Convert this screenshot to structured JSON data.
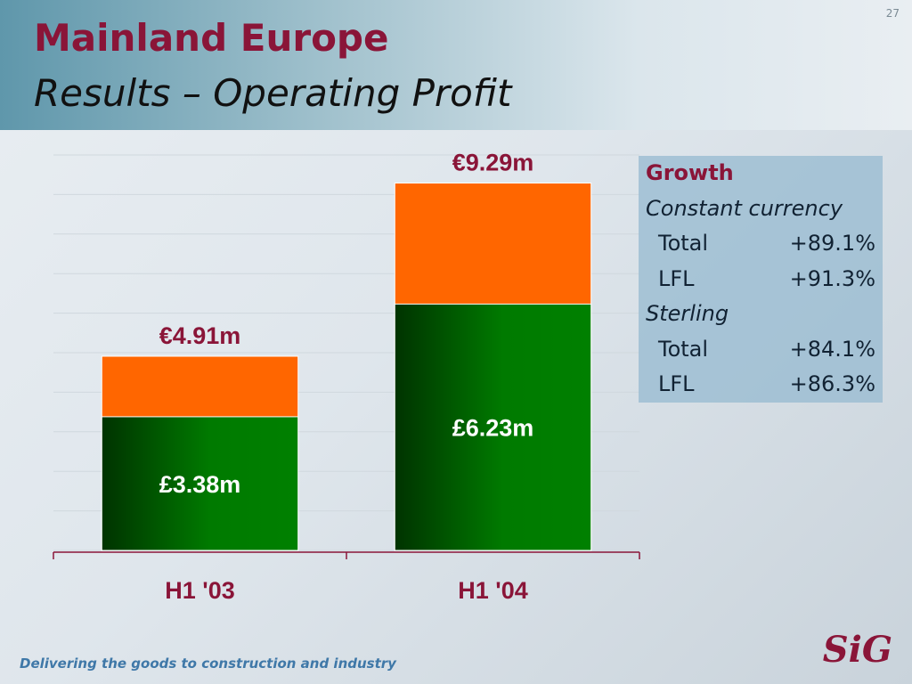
{
  "page_number": "27",
  "title": "Mainland Europe",
  "subtitle": "Results – Operating Profit",
  "footer": "Delivering the goods to construction and industry",
  "logo": "SiG",
  "chart_data": {
    "type": "bar",
    "overlap": true,
    "categories": [
      "H1 '03",
      "H1 '04"
    ],
    "series": [
      {
        "color": "#ff6600",
        "values": [
          4.91,
          9.29
        ],
        "value_labels": [
          "€4.91m",
          "€9.29m"
        ]
      },
      {
        "color": "#008000",
        "values": [
          3.38,
          6.23
        ],
        "value_labels": [
          "£3.38m",
          "£6.23m"
        ]
      }
    ],
    "ylim": [
      0,
      10
    ],
    "yticks": [
      0,
      1,
      2,
      3,
      4,
      5,
      6,
      7,
      8,
      9,
      10
    ],
    "grid": true
  },
  "growth_table": {
    "title": "Growth",
    "sections": [
      {
        "heading": "Constant currency",
        "rows": [
          [
            "Total",
            "+89.1%"
          ],
          [
            "LFL",
            "+91.3%"
          ]
        ]
      },
      {
        "heading": "Sterling",
        "rows": [
          [
            "Total",
            "+84.1%"
          ],
          [
            "LFL",
            "+86.3%"
          ]
        ]
      }
    ]
  }
}
